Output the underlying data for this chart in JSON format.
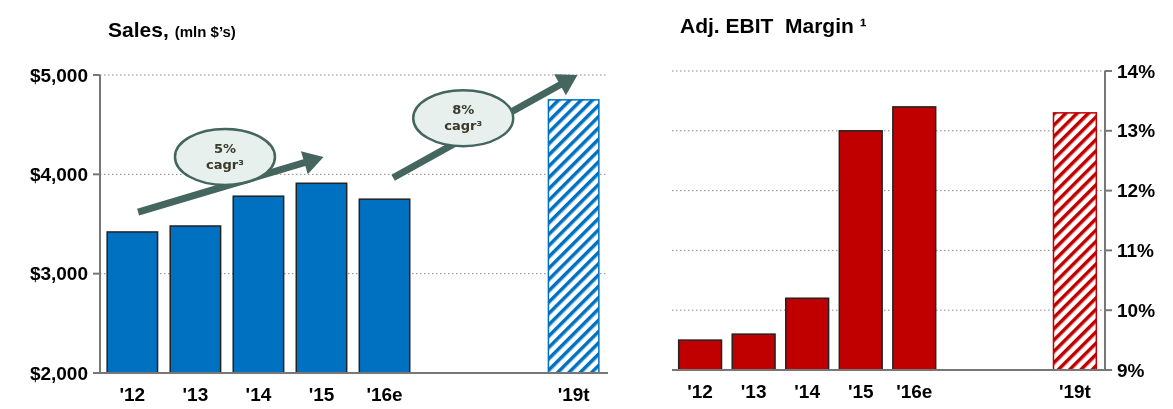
{
  "chart_data": [
    {
      "type": "bar",
      "title": "Sales,",
      "subtitle": "(mln $’s)",
      "categories": [
        "'12",
        "'13",
        "'14",
        "'15",
        "'16e",
        null,
        null,
        "'19t"
      ],
      "series": [
        {
          "color": "#0070c0",
          "values": [
            3420,
            3480,
            3780,
            3910,
            3750,
            null,
            null,
            null
          ]
        },
        {
          "color": "#0070c0",
          "values": [
            null,
            null,
            null,
            null,
            null,
            null,
            null,
            4750
          ]
        }
      ],
      "ylim": [
        2000,
        5000
      ],
      "yticks": [
        {
          "value": 2000,
          "label": "$2,000"
        },
        {
          "value": 3000,
          "label": "$3,000"
        },
        {
          "value": 4000,
          "label": "$4,000"
        },
        {
          "value": 5000,
          "label": "$5,000"
        }
      ],
      "grid": "y",
      "annotations": [
        "5% cagr³",
        "8% cagr³"
      ]
    },
    {
      "type": "bar",
      "title": "Adj. EBIT  Margin ¹",
      "categories": [
        "'12",
        "'13",
        "'14",
        "'15",
        "'16e",
        null,
        null,
        "'19t"
      ],
      "series": [
        {
          "color": "#c00000",
          "axis": "y2",
          "values": [
            9.5,
            9.6,
            10.2,
            13.0,
            13.4,
            null,
            null,
            null
          ]
        },
        {
          "color": "#c00000",
          "axis": "y2",
          "values": [
            null,
            null,
            null,
            null,
            null,
            null,
            null,
            13.3
          ]
        }
      ],
      "y2lim": [
        9,
        14
      ],
      "y2ticks": [
        {
          "value": 9,
          "label": "9%"
        },
        {
          "value": 10,
          "label": "10%"
        },
        {
          "value": 11,
          "label": "11%"
        },
        {
          "value": 12,
          "label": "12%"
        },
        {
          "value": 13,
          "label": "13%"
        },
        {
          "value": 14,
          "label": "14%"
        }
      ],
      "grid": "y"
    }
  ]
}
